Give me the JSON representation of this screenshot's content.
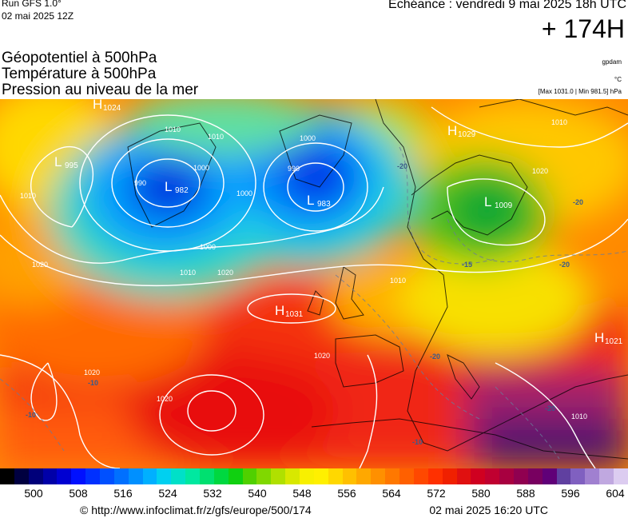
{
  "header": {
    "run": "Run GFS 1.0°",
    "run_date": "02 mai 2025 12Z",
    "echeance": "Echéance : vendredi 9 mai 2025 18h UTC",
    "step": "+ 174H",
    "titles": [
      "Géopotentiel à 500hPa",
      "Température à 500hPa",
      "Pression au niveau de la mer"
    ],
    "unit_geo": "gpdam",
    "unit_temp": "°C",
    "pressure_range": "[Max 1031.0 | Min 981.5] hPa"
  },
  "map": {
    "centers": [
      {
        "type": "H",
        "value": "1024"
      },
      {
        "type": "L",
        "value": "982"
      },
      {
        "type": "L",
        "value": "983"
      },
      {
        "type": "H",
        "value": "1029"
      },
      {
        "type": "L",
        "value": "1009"
      },
      {
        "type": "H",
        "value": "1031"
      },
      {
        "type": "H",
        "value": "1021"
      },
      {
        "type": "L",
        "value": "995"
      }
    ],
    "isobar_labels": [
      "1010",
      "1010",
      "1000",
      "990",
      "1000",
      "1000",
      "1010",
      "1020",
      "1020",
      "1010",
      "1020",
      "1020",
      "1020",
      "1010",
      "1010",
      "1020",
      "1000",
      "990",
      "1010"
    ],
    "temp_labels": [
      "-20",
      "-20",
      "-20",
      "-20",
      "-15",
      "-10",
      "-10",
      "-10",
      "-20"
    ]
  },
  "scale": {
    "ticks": [
      "500",
      "508",
      "516",
      "524",
      "532",
      "540",
      "548",
      "556",
      "564",
      "572",
      "580",
      "588",
      "596",
      "604"
    ],
    "colors": [
      "#000000",
      "#000040",
      "#00007a",
      "#0000a8",
      "#0000d2",
      "#0010ff",
      "#0030ff",
      "#0050ff",
      "#0070ff",
      "#0090ff",
      "#00b0ff",
      "#00d0f0",
      "#00e0c8",
      "#00e8a0",
      "#00e070",
      "#00d840",
      "#10d010",
      "#50d000",
      "#80d800",
      "#b0e000",
      "#d8e800",
      "#f8f000",
      "#fff000",
      "#ffd800",
      "#ffc000",
      "#ffa800",
      "#ff9000",
      "#ff7800",
      "#ff6000",
      "#ff4800",
      "#ff3000",
      "#f02000",
      "#e01010",
      "#d00020",
      "#c00030",
      "#a80040",
      "#900050",
      "#780060",
      "#600078",
      "#6040a0",
      "#8060c0",
      "#a080d0",
      "#c0a8e0",
      "#dcccf0"
    ]
  },
  "footer": {
    "copyright": "© http://www.infoclimat.fr/z/gfs/europe/500/174",
    "generated": "02 mai 2025 16:20 UTC"
  }
}
